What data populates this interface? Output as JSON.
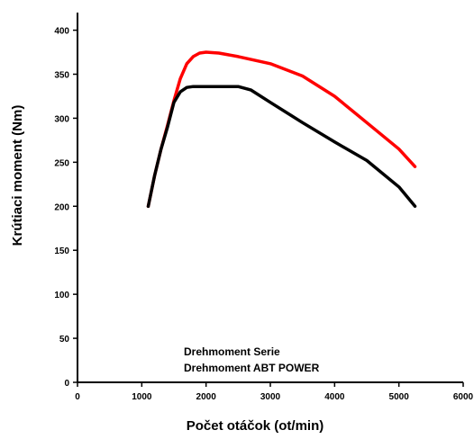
{
  "chart_data": {
    "type": "line",
    "xlabel": "Počet otáčok (ot/min)",
    "ylabel": "Krútiaci moment (Nm)",
    "xlim": [
      0,
      6000
    ],
    "ylim": [
      0,
      420
    ],
    "xticks": [
      0,
      1000,
      2000,
      3000,
      4000,
      5000,
      6000
    ],
    "yticks": [
      0,
      50,
      100,
      150,
      200,
      250,
      300,
      350,
      400
    ],
    "grid": false,
    "legend_position": "bottom-center",
    "series": [
      {
        "name": "Drehmoment Serie",
        "color": "#000000",
        "x": [
          1100,
          1200,
          1300,
          1400,
          1500,
          1600,
          1700,
          1800,
          2000,
          2200,
          2500,
          2700,
          3000,
          3500,
          4000,
          4500,
          5000,
          5250
        ],
        "y": [
          200,
          235,
          265,
          290,
          318,
          330,
          335,
          336,
          336,
          336,
          336,
          332,
          318,
          295,
          273,
          252,
          222,
          200
        ]
      },
      {
        "name": "Drehmoment ABT POWER",
        "color": "#ff0000",
        "x": [
          1100,
          1200,
          1300,
          1400,
          1500,
          1600,
          1700,
          1800,
          1900,
          2000,
          2200,
          2500,
          3000,
          3500,
          4000,
          4500,
          5000,
          5250
        ],
        "y": [
          200,
          235,
          265,
          292,
          320,
          345,
          362,
          370,
          374,
          375,
          374,
          370,
          362,
          348,
          325,
          295,
          265,
          245
        ]
      }
    ]
  }
}
